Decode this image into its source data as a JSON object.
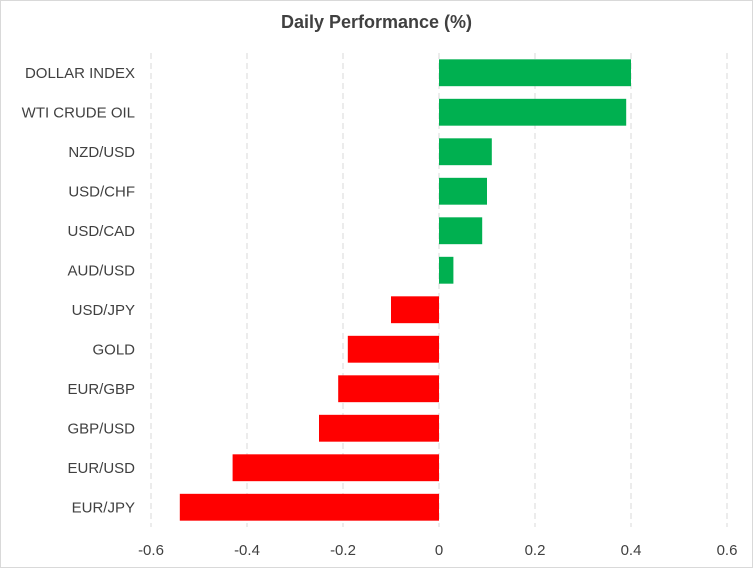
{
  "chart_data": {
    "type": "bar",
    "orientation": "horizontal",
    "title": "Daily Performance (%)",
    "xlabel": "",
    "ylabel": "",
    "xlim": [
      -0.6,
      0.6
    ],
    "x_ticks": [
      -0.6,
      -0.4,
      -0.2,
      0,
      0.2,
      0.4,
      0.6
    ],
    "x_tick_labels": [
      "-0.6",
      "-0.4",
      "-0.2",
      "0",
      "0.2",
      "0.4",
      "0.6"
    ],
    "gridlines": "vertical dashed",
    "legend": "none",
    "categories": [
      "DOLLAR INDEX",
      "WTI CRUDE OIL",
      "NZD/USD",
      "USD/CHF",
      "USD/CAD",
      "AUD/USD",
      "USD/JPY",
      "GOLD",
      "EUR/GBP",
      "GBP/USD",
      "EUR/USD",
      "EUR/JPY"
    ],
    "values": [
      0.4,
      0.39,
      0.11,
      0.1,
      0.09,
      0.03,
      -0.1,
      -0.19,
      -0.21,
      -0.25,
      -0.43,
      -0.54
    ],
    "colors": {
      "positive": "#00b050",
      "negative": "#ff0000",
      "grid": "#d9d9d9",
      "text": "#404040"
    }
  }
}
